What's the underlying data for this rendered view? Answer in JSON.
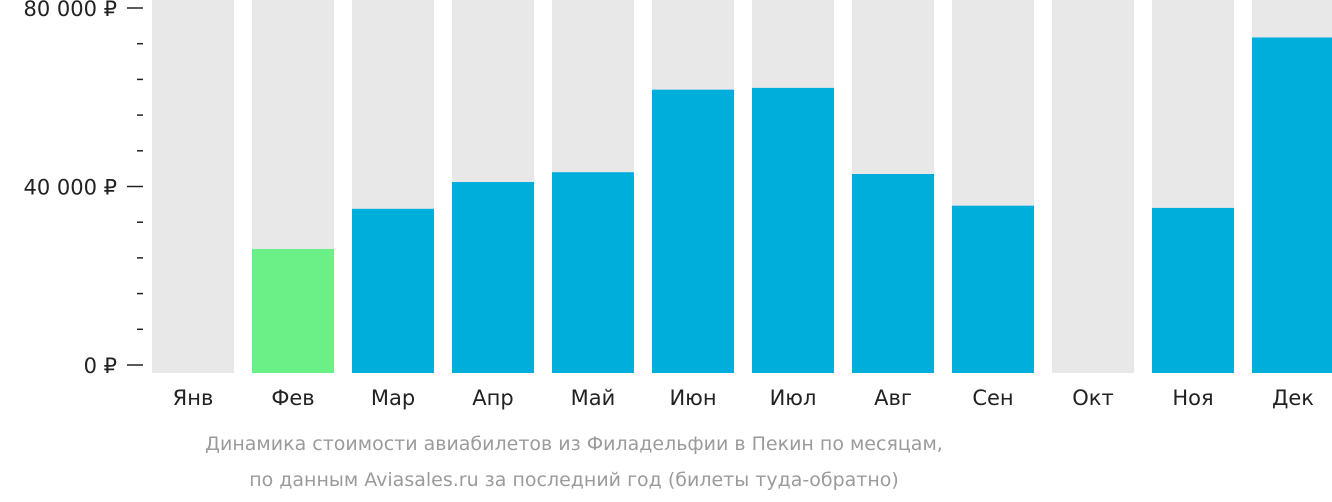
{
  "colors": {
    "track": "#e8e8e8",
    "bar": "#00aedb",
    "highlight": "#6bf088",
    "axis_text": "#222222",
    "caption_text": "#9b9b9b"
  },
  "caption": {
    "line1": "Динамика стоимости авиабилетов из Филадельфии в Пекин по месяцам,",
    "line2": "по данным Aviasales.ru за последний год (билеты туда-обратно)"
  },
  "chart_data": {
    "type": "bar",
    "categories": [
      "Янв",
      "Фев",
      "Мар",
      "Апр",
      "Май",
      "Июн",
      "Июл",
      "Авг",
      "Сен",
      "Окт",
      "Ноя",
      "Дек"
    ],
    "values": [
      null,
      26000,
      35000,
      41000,
      43200,
      61700,
      62100,
      42800,
      35700,
      null,
      35200,
      73400
    ],
    "highlight_index": 1,
    "ylim": [
      0,
      80000
    ],
    "yticks": [
      {
        "value": 0,
        "label": "0 ₽"
      },
      {
        "value": 40000,
        "label": "40 000 ₽"
      },
      {
        "value": 80000,
        "label": "80 000 ₽"
      }
    ],
    "minor_tick_step": 8000,
    "grid": false,
    "legend": "none"
  }
}
